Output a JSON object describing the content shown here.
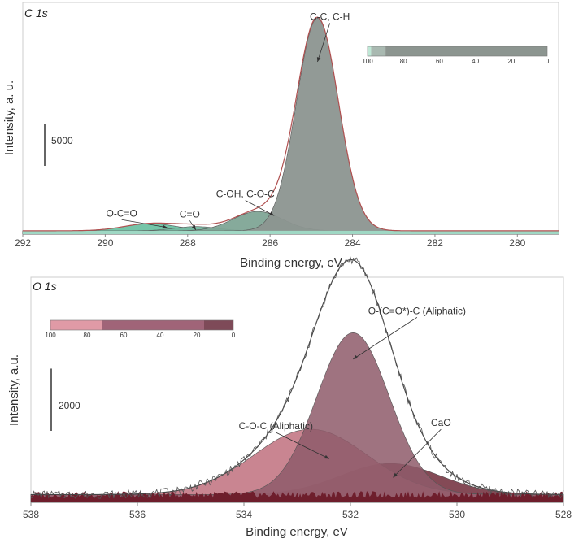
{
  "chart_data": [
    {
      "type": "area",
      "title": "C 1s",
      "xlabel": "Binding energy, eV",
      "ylabel": "Intensity, a. u.",
      "xlim": [
        292,
        279
      ],
      "x_reversed": true,
      "xticks": [
        292,
        290,
        288,
        286,
        284,
        282,
        280
      ],
      "ylim": [
        0,
        26500
      ],
      "scale_bar": {
        "value": 5000,
        "label": "5000"
      },
      "baseline": 400,
      "envelope_color": "#b05050",
      "components": [
        {
          "label": "C-C, C-H",
          "center": 284.85,
          "fwhm": 1.2,
          "height": 25300,
          "color": "#8c9590"
        },
        {
          "label": "C-OH, C-O-C",
          "center": 286.3,
          "fwhm": 1.4,
          "height": 2300,
          "color": "#7fa596"
        },
        {
          "label": "C=O",
          "center": 287.8,
          "fwhm": 1.2,
          "height": 500,
          "color": "#76b8a0"
        },
        {
          "label": "O-C=O",
          "center": 288.9,
          "fwhm": 1.5,
          "height": 850,
          "color": "#6ec2a3"
        }
      ],
      "annotations": [
        {
          "text": "C-C, C-H",
          "x": 284.55,
          "y": 25500,
          "point_x": 284.85,
          "point_y": 20500
        },
        {
          "text": "C-OH, C-O-C",
          "x": 286.6,
          "y": 4400,
          "point_x": 285.9,
          "point_y": 2200
        },
        {
          "text": "C=O",
          "x": 287.95,
          "y": 2000,
          "point_x": 287.8,
          "point_y": 500
        },
        {
          "text": "O-C=O",
          "x": 289.6,
          "y": 2100,
          "point_x": 288.5,
          "point_y": 800
        }
      ],
      "colorbar": {
        "ticks": [
          100,
          80,
          60,
          40,
          20,
          0
        ],
        "segments": [
          {
            "from": 100,
            "to": 98,
            "color": "#bfe8d6"
          },
          {
            "from": 98,
            "to": 90,
            "color": "#a9b9b1"
          },
          {
            "from": 90,
            "to": 0,
            "color": "#8c9590"
          }
        ]
      }
    },
    {
      "type": "area",
      "title": "O 1s",
      "xlabel": "Binding energy, eV",
      "ylabel": "Intensity, a.u.",
      "xlim": [
        538,
        528
      ],
      "x_reversed": true,
      "xticks": [
        538,
        536,
        534,
        532,
        530,
        528
      ],
      "ylim": [
        0,
        7000
      ],
      "scale_bar": {
        "value": 2000,
        "label": "2000"
      },
      "baseline": 250,
      "envelope_color": "#444444",
      "components": [
        {
          "label": "O-(C=O*)-C (Aliphatic)",
          "center": 531.95,
          "fwhm": 1.6,
          "height": 5200,
          "color": "#8e5a6a"
        },
        {
          "label": "C-O-C (Aliphatic)",
          "center": 532.75,
          "fwhm": 2.5,
          "height": 2100,
          "color": "#c0707e"
        },
        {
          "label": "CaO",
          "center": 531.25,
          "fwhm": 2.2,
          "height": 1000,
          "color": "#6e2a38"
        }
      ],
      "annotations": [
        {
          "text": "O-(C=O*)-C (Aliphatic)",
          "x": 530.75,
          "y": 6050,
          "point_x": 531.95,
          "point_y": 4600
        },
        {
          "text": "C-O-C (Aliphatic)",
          "x": 533.4,
          "y": 2350,
          "point_x": 532.4,
          "point_y": 1400
        },
        {
          "text": "CaO",
          "x": 530.3,
          "y": 2450,
          "point_x": 531.2,
          "point_y": 800
        }
      ],
      "colorbar": {
        "ticks": [
          100,
          80,
          60,
          40,
          20,
          0
        ],
        "segments": [
          {
            "from": 100,
            "to": 72,
            "color": "#e09aa6"
          },
          {
            "from": 72,
            "to": 16,
            "color": "#a06478"
          },
          {
            "from": 16,
            "to": 0,
            "color": "#7e4a58"
          }
        ]
      }
    }
  ]
}
